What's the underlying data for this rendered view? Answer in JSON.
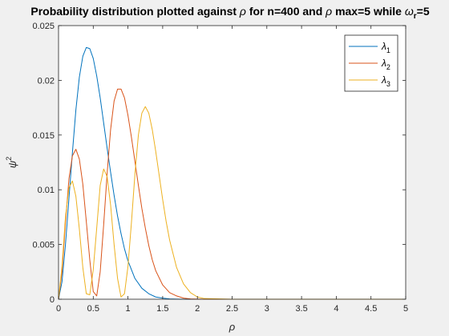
{
  "chart_data": {
    "type": "line",
    "title": {
      "prefix": "Probability distribution plotted against ",
      "symbol1": "ρ",
      "mid": " for n=400 and ",
      "symbol2": "ρ",
      "mid2": " max=5 while ",
      "symbol3": "ω",
      "subscript3": "r",
      "suffix": "=5"
    },
    "xlabel": "ρ",
    "ylabel": {
      "base": "ψ",
      "superscript": "2"
    },
    "xlim": [
      0,
      5
    ],
    "ylim": [
      0,
      0.025
    ],
    "xticks": [
      "0",
      "0.5",
      "1",
      "1.5",
      "2",
      "2.5",
      "3",
      "3.5",
      "4",
      "4.5",
      "5"
    ],
    "yticks": [
      "0",
      "0.005",
      "0.01",
      "0.015",
      "0.02",
      "0.025"
    ],
    "legend_position": "top-right",
    "series": [
      {
        "name": "λ",
        "subscript": "1",
        "color": "#0072BD",
        "x": [
          0,
          0.05,
          0.1,
          0.15,
          0.2,
          0.25,
          0.3,
          0.35,
          0.4,
          0.45,
          0.5,
          0.55,
          0.6,
          0.65,
          0.7,
          0.75,
          0.8,
          0.85,
          0.9,
          0.95,
          1.0,
          1.1,
          1.2,
          1.3,
          1.4,
          1.5,
          1.6,
          1.7,
          1.8,
          2.0,
          2.5,
          5.0
        ],
        "y": [
          0,
          0.0016,
          0.005,
          0.0092,
          0.0134,
          0.0173,
          0.0203,
          0.0222,
          0.023,
          0.0229,
          0.022,
          0.0204,
          0.0184,
          0.0161,
          0.0138,
          0.0116,
          0.0095,
          0.0076,
          0.006,
          0.0046,
          0.0035,
          0.0019,
          0.001,
          0.0005,
          0.0002,
          0.0001,
          3e-05,
          1e-05,
          0,
          0,
          0,
          0
        ]
      },
      {
        "name": "λ",
        "subscript": "2",
        "color": "#D95319",
        "x": [
          0,
          0.05,
          0.1,
          0.15,
          0.2,
          0.25,
          0.3,
          0.35,
          0.4,
          0.45,
          0.5,
          0.55,
          0.6,
          0.65,
          0.7,
          0.75,
          0.8,
          0.85,
          0.9,
          0.95,
          1.0,
          1.05,
          1.1,
          1.15,
          1.2,
          1.25,
          1.3,
          1.35,
          1.4,
          1.5,
          1.6,
          1.7,
          1.8,
          1.9,
          2.0,
          2.1,
          2.5,
          5.0
        ],
        "y": [
          0,
          0.0025,
          0.007,
          0.011,
          0.0131,
          0.0137,
          0.0128,
          0.0105,
          0.0071,
          0.0036,
          0.0007,
          0.0003,
          0.0025,
          0.0068,
          0.0115,
          0.0155,
          0.0181,
          0.0192,
          0.0192,
          0.0184,
          0.0168,
          0.0148,
          0.0126,
          0.0104,
          0.0083,
          0.0065,
          0.0049,
          0.0036,
          0.0026,
          0.0013,
          0.0006,
          0.0003,
          0.0001,
          3e-05,
          1e-05,
          0,
          0,
          0
        ]
      },
      {
        "name": "λ",
        "subscript": "3",
        "color": "#EDB120",
        "x": [
          0,
          0.05,
          0.1,
          0.15,
          0.2,
          0.25,
          0.3,
          0.35,
          0.4,
          0.45,
          0.5,
          0.55,
          0.6,
          0.65,
          0.7,
          0.75,
          0.8,
          0.85,
          0.9,
          0.95,
          1.0,
          1.05,
          1.1,
          1.15,
          1.2,
          1.25,
          1.3,
          1.35,
          1.4,
          1.45,
          1.5,
          1.55,
          1.6,
          1.7,
          1.8,
          1.9,
          2.0,
          2.1,
          2.5,
          5.0
        ],
        "y": [
          0,
          0.003,
          0.0075,
          0.0102,
          0.0108,
          0.0094,
          0.0064,
          0.0029,
          0.0005,
          0.0004,
          0.0027,
          0.0065,
          0.0104,
          0.0119,
          0.0112,
          0.0086,
          0.005,
          0.0019,
          0.0002,
          0.0005,
          0.003,
          0.007,
          0.0114,
          0.015,
          0.017,
          0.0176,
          0.017,
          0.0155,
          0.0135,
          0.0113,
          0.0091,
          0.0071,
          0.0054,
          0.0029,
          0.0014,
          0.0006,
          0.0002,
          6e-05,
          0,
          0
        ]
      }
    ]
  }
}
